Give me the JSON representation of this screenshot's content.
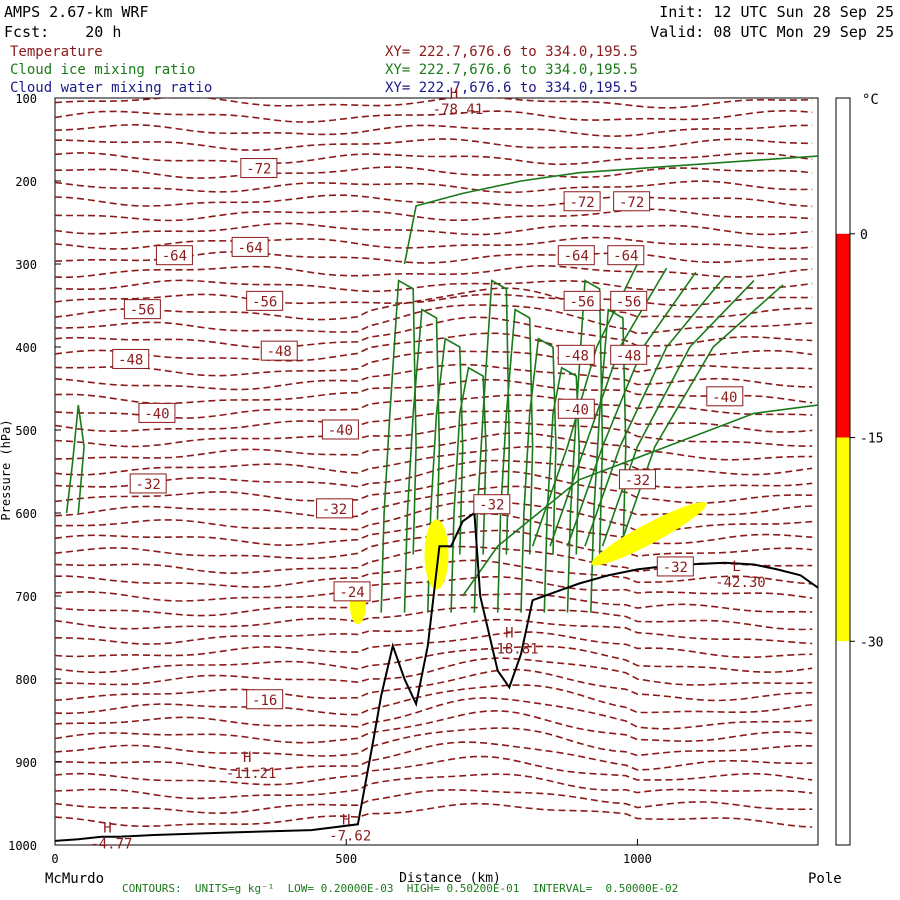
{
  "header": {
    "model": "AMPS 2.67-km WRF",
    "forecast": "Fcst:    20 h",
    "init": "Init: 12 UTC Sun 28 Sep 25",
    "valid": "Valid: 08 UTC Mon 29 Sep 25"
  },
  "fields": [
    {
      "name": "Temperature",
      "xy": "XY= 222.7,676.6 to 334.0,195.5",
      "color": "#8b1a1a"
    },
    {
      "name": "Cloud ice mixing ratio",
      "xy": "XY= 222.7,676.6 to 334.0,195.5",
      "color": "#1a7a1a"
    },
    {
      "name": "Cloud water mixing ratio",
      "xy": "XY= 222.7,676.6 to 334.0,195.5",
      "color": "#1a1a8b"
    }
  ],
  "footer": {
    "contours": "CONTOURS:  UNITS=g kg⁻¹  LOW= 0.20000E-03  HIGH= 0.50200E-01  INTERVAL=  0.50000E-02"
  },
  "colorbar": {
    "unit": "°C",
    "levels": [
      "0",
      "-15",
      "-30"
    ],
    "bands": [
      {
        "from": 10,
        "to": 0,
        "color": "#ffffff"
      },
      {
        "from": 0,
        "to": -15,
        "color": "#ff0000"
      },
      {
        "from": -15,
        "to": -30,
        "color": "#ffff00"
      },
      {
        "from": -30,
        "to": -45,
        "color": "#ffffff"
      }
    ]
  },
  "chart_data": {
    "type": "contour-cross-section",
    "xlabel": "Distance (km)",
    "ylabel": "Pressure (hPa)",
    "xlim": [
      0,
      1310
    ],
    "ylim": [
      1000,
      100
    ],
    "x_ticks": [
      "0",
      "500",
      "1000"
    ],
    "y_ticks": [
      "100",
      "200",
      "300",
      "400",
      "500",
      "600",
      "700",
      "800",
      "900",
      "1000"
    ],
    "x_end_labels": {
      "left": "McMurdo",
      "right": "Pole"
    },
    "temperature_labels": [
      {
        "text": "-72",
        "x": 350,
        "p": 185
      },
      {
        "text": "-72",
        "x": 905,
        "p": 225
      },
      {
        "text": "-72",
        "x": 990,
        "p": 225
      },
      {
        "text": "-64",
        "x": 205,
        "p": 290
      },
      {
        "text": "-64",
        "x": 335,
        "p": 280
      },
      {
        "text": "-64",
        "x": 895,
        "p": 290
      },
      {
        "text": "-64",
        "x": 980,
        "p": 290
      },
      {
        "text": "-56",
        "x": 150,
        "p": 355
      },
      {
        "text": "-56",
        "x": 360,
        "p": 345
      },
      {
        "text": "-56",
        "x": 905,
        "p": 345
      },
      {
        "text": "-56",
        "x": 985,
        "p": 345
      },
      {
        "text": "-48",
        "x": 130,
        "p": 415
      },
      {
        "text": "-48",
        "x": 385,
        "p": 405
      },
      {
        "text": "-48",
        "x": 895,
        "p": 410
      },
      {
        "text": "-48",
        "x": 985,
        "p": 410
      },
      {
        "text": "-40",
        "x": 175,
        "p": 480
      },
      {
        "text": "-40",
        "x": 490,
        "p": 500
      },
      {
        "text": "-40",
        "x": 895,
        "p": 475
      },
      {
        "text": "-40",
        "x": 1150,
        "p": 460
      },
      {
        "text": "-32",
        "x": 160,
        "p": 565
      },
      {
        "text": "-32",
        "x": 480,
        "p": 595
      },
      {
        "text": "-32",
        "x": 750,
        "p": 590
      },
      {
        "text": "-32",
        "x": 1000,
        "p": 560
      },
      {
        "text": "-32",
        "x": 1065,
        "p": 665
      },
      {
        "text": "-24",
        "x": 510,
        "p": 695
      },
      {
        "text": "-16",
        "x": 360,
        "p": 825
      }
    ],
    "extrema": [
      {
        "type": "H",
        "value": "-78.41",
        "x": 685,
        "p": 100
      },
      {
        "type": "H",
        "value": "-4.77",
        "x": 90,
        "p": 985
      },
      {
        "type": "H",
        "value": "-11.21",
        "x": 330,
        "p": 900
      },
      {
        "type": "H",
        "value": "-7.62",
        "x": 500,
        "p": 975
      },
      {
        "type": "H",
        "value": "-18.81",
        "x": 780,
        "p": 750
      },
      {
        "type": "L",
        "value": "-42.30",
        "x": 1170,
        "p": 670
      }
    ]
  }
}
